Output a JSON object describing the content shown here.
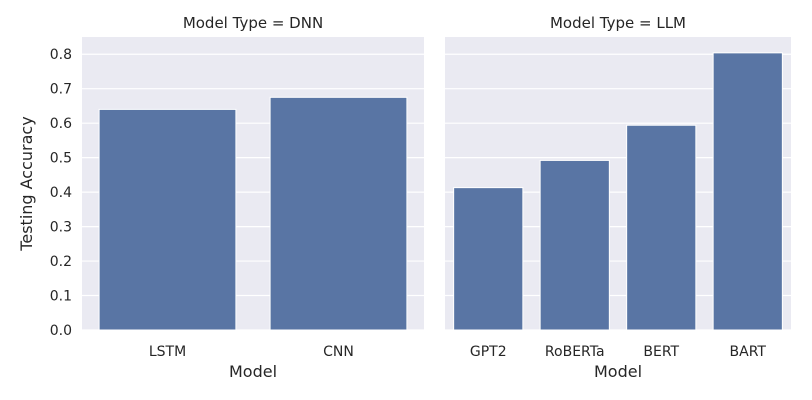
{
  "chart_data": [
    {
      "type": "bar",
      "title": "Model Type = DNN",
      "xlabel": "Model",
      "ylabel": "Testing Accuracy",
      "categories": [
        "LSTM",
        "CNN"
      ],
      "values": [
        0.64,
        0.675
      ],
      "ylim": [
        0,
        0.85
      ],
      "yticks": [
        "0.0",
        "0.1",
        "0.2",
        "0.3",
        "0.4",
        "0.5",
        "0.6",
        "0.7",
        "0.8"
      ],
      "grid": true,
      "bar_color": "#5975a4",
      "background": "#eaeaf2"
    },
    {
      "type": "bar",
      "title": "Model Type = LLM",
      "xlabel": "Model",
      "ylabel": "",
      "categories": [
        "GPT2",
        "RoBERTa",
        "BERT",
        "BART"
      ],
      "values": [
        0.413,
        0.492,
        0.594,
        0.804
      ],
      "ylim": [
        0,
        0.85
      ],
      "yticks": [
        "0.0",
        "0.1",
        "0.2",
        "0.3",
        "0.4",
        "0.5",
        "0.6",
        "0.7",
        "0.8"
      ],
      "grid": true,
      "bar_color": "#5975a4",
      "background": "#eaeaf2"
    }
  ]
}
